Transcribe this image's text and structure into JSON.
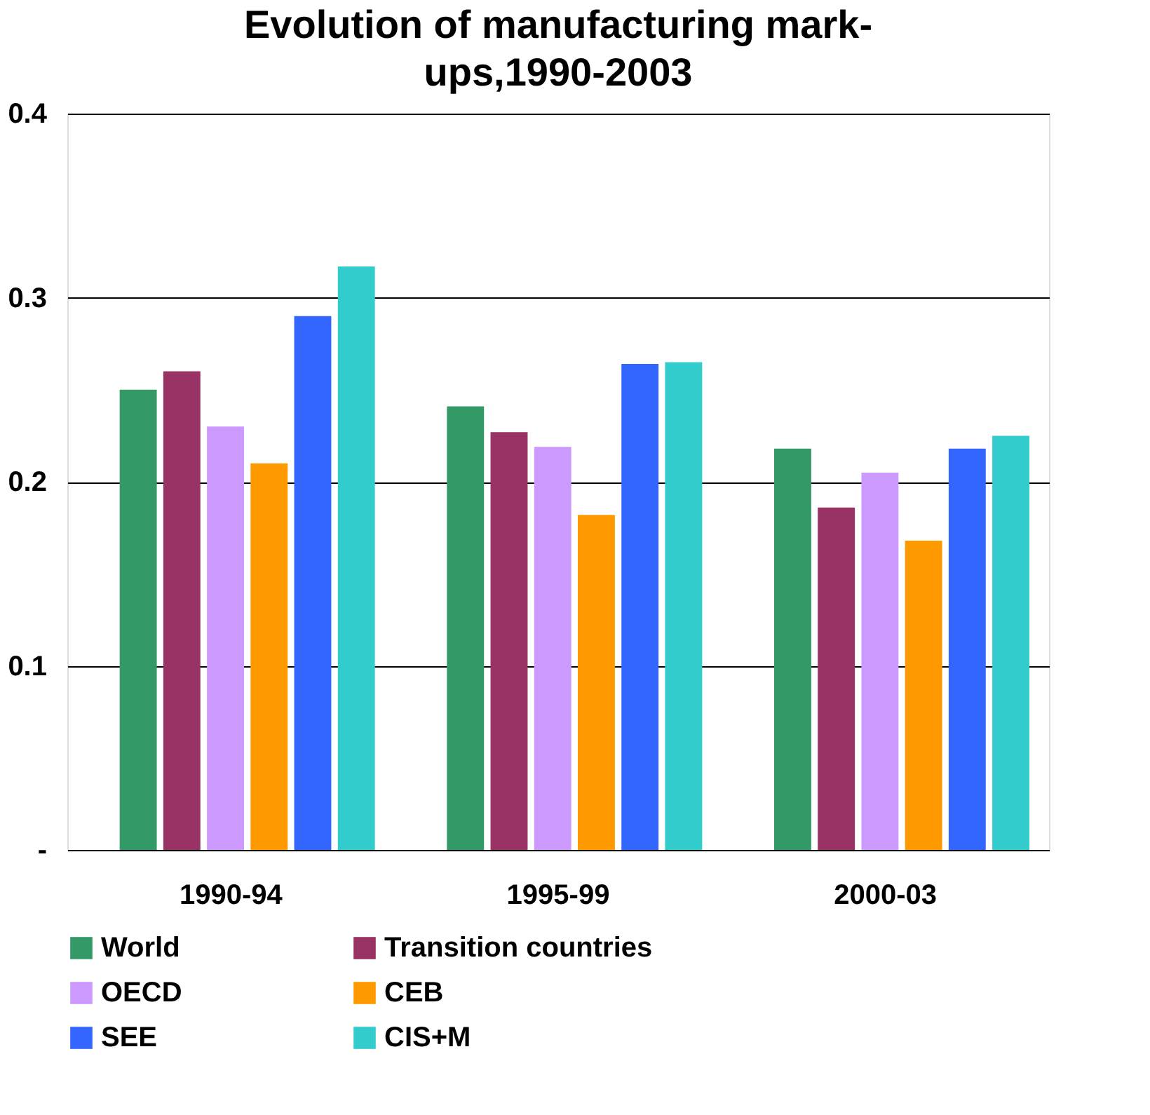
{
  "chart_data": {
    "type": "bar",
    "title": "Evolution of manufacturing mark-ups,1990-2003",
    "categories": [
      "1990-94",
      "1995-99",
      "2000-03"
    ],
    "series": [
      {
        "name": "World",
        "color": "#339966",
        "values": [
          0.25,
          0.241,
          0.218
        ]
      },
      {
        "name": "Transition countries",
        "color": "#993366",
        "values": [
          0.26,
          0.227,
          0.186
        ]
      },
      {
        "name": "OECD",
        "color": "#cc99ff",
        "values": [
          0.23,
          0.219,
          0.205
        ]
      },
      {
        "name": "CEB",
        "color": "#ff9900",
        "values": [
          0.21,
          0.182,
          0.168
        ]
      },
      {
        "name": "SEE",
        "color": "#3366ff",
        "values": [
          0.29,
          0.264,
          0.218
        ]
      },
      {
        "name": "CIS+M",
        "color": "#33cccc",
        "values": [
          0.317,
          0.265,
          0.225
        ]
      }
    ],
    "ylim": [
      0,
      0.4
    ],
    "yticks": [
      {
        "value": 0,
        "label": "-"
      },
      0.1,
      0.2,
      0.3,
      0.4
    ],
    "grid": "y",
    "legend": "bottom"
  }
}
